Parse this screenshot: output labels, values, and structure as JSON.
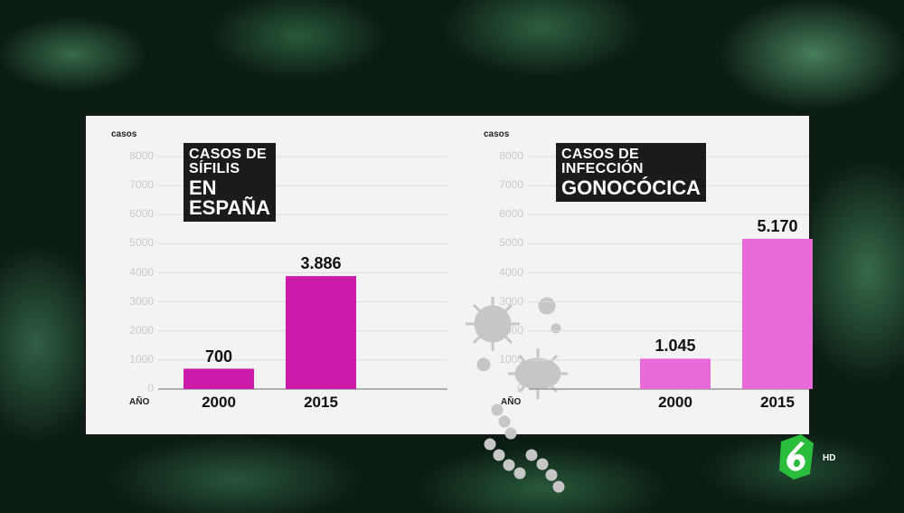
{
  "chart_data": [
    {
      "type": "bar",
      "title": "CASOS DE SÍFILIS",
      "subtitle": "EN ESPAÑA",
      "ylabel": "casos",
      "xlabel": "AÑO",
      "categories": [
        "2000",
        "2015"
      ],
      "values": [
        700,
        3886
      ],
      "value_labels": [
        "700",
        "3.886"
      ],
      "yticks": [
        "8000",
        "7000",
        "6000",
        "5000",
        "4000",
        "3000",
        "2000",
        "1000",
        "0"
      ],
      "ylim": [
        0,
        8000
      ],
      "color": "#cc1aaa",
      "grid": true
    },
    {
      "type": "bar",
      "title": "CASOS DE INFECCIÓN",
      "subtitle": "GONOCÓCICA",
      "ylabel": "casos",
      "xlabel": "AÑO",
      "categories": [
        "2000",
        "2015"
      ],
      "values": [
        1045,
        5170
      ],
      "value_labels": [
        "1.045",
        "5.170"
      ],
      "yticks": [
        "8000",
        "7000",
        "6000",
        "5000",
        "4000",
        "3000",
        "2000",
        "1000",
        "0"
      ],
      "ylim": [
        0,
        8000
      ],
      "color": "#e86ad6",
      "grid": true
    }
  ],
  "channel": {
    "logo_icon": "la-sexta-6-logo-icon",
    "badge": "HD"
  }
}
